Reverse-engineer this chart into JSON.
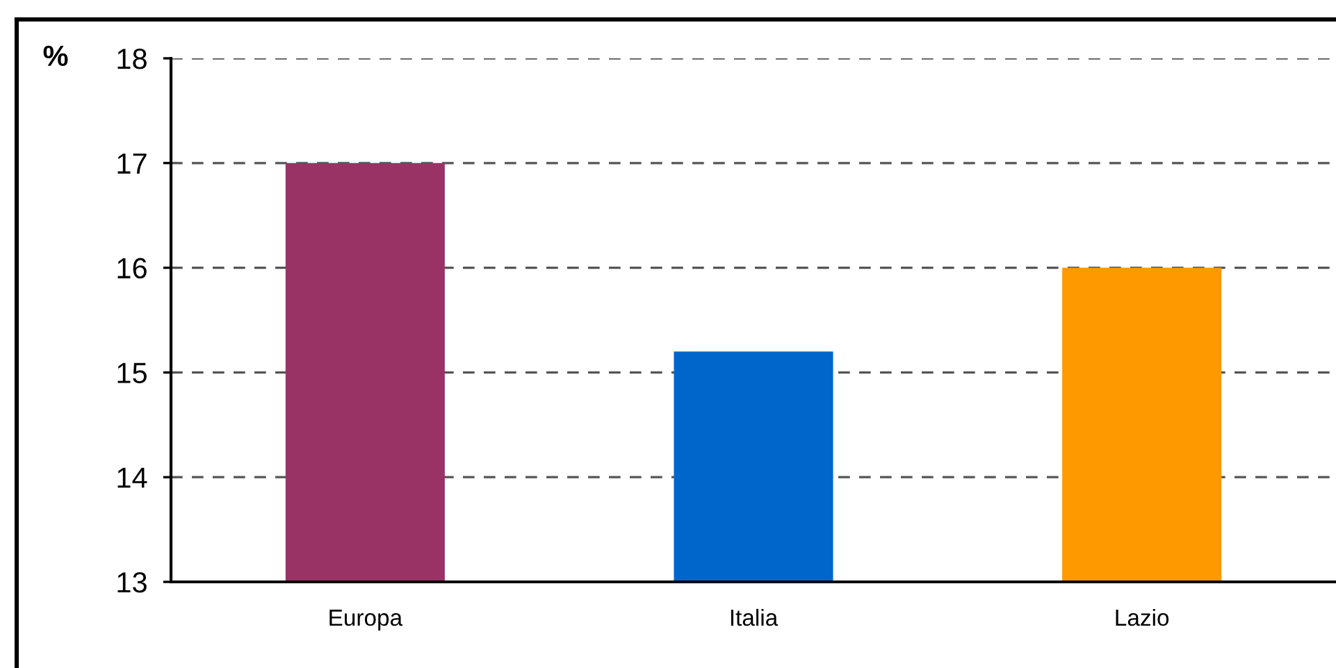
{
  "chart_data": {
    "type": "bar",
    "ylabel": "%",
    "categories": [
      "Europa",
      "Italia",
      "Lazio"
    ],
    "values": [
      17,
      15.2,
      16
    ],
    "colors": [
      "#993366",
      "#0066cc",
      "#ff9900"
    ],
    "ylim": [
      13,
      18
    ],
    "yticks": [
      13,
      14,
      15,
      16,
      17,
      18
    ],
    "grid": "y"
  }
}
